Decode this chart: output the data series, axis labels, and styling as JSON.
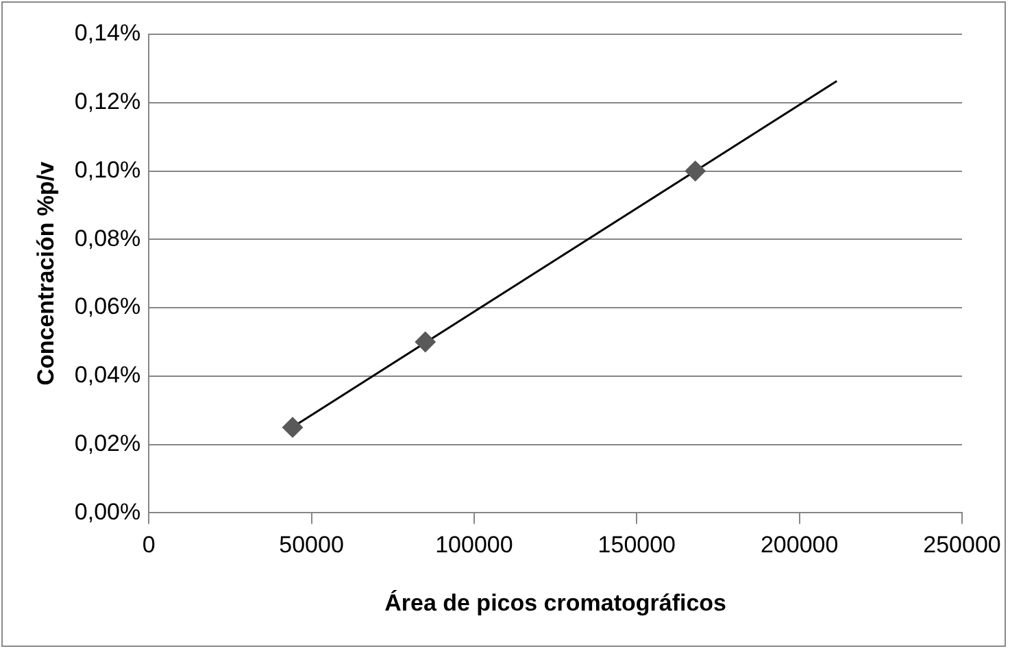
{
  "chart_data": {
    "type": "scatter",
    "xlabel": "Área de picos cromatográficos",
    "ylabel": "Concentración %p/v",
    "xlim": [
      0,
      250000
    ],
    "xticks": [
      0,
      50000,
      100000,
      150000,
      200000,
      250000
    ],
    "ylim": [
      0,
      0.14
    ],
    "yticks": [
      {
        "value": 0,
        "label": "0,00%"
      },
      {
        "value": 0.02,
        "label": "0,02%"
      },
      {
        "value": 0.04,
        "label": "0,04%"
      },
      {
        "value": 0.06,
        "label": "0,06%"
      },
      {
        "value": 0.08,
        "label": "0,08%"
      },
      {
        "value": 0.1,
        "label": "0,10%"
      },
      {
        "value": 0.12,
        "label": "0,12%"
      },
      {
        "value": 0.14,
        "label": "0,14%"
      }
    ],
    "grid": "y",
    "legend": false,
    "marker": "diamond",
    "series": [
      {
        "type": "scatter",
        "color": "#595959",
        "x": [
          44200,
          85000,
          168000
        ],
        "values": [
          0.025,
          0.05,
          0.1
        ]
      },
      {
        "type": "line",
        "color": "#000000",
        "marker": "none",
        "x": [
          44200,
          211500
        ],
        "values": [
          0.0251,
          0.1263
        ]
      }
    ]
  }
}
